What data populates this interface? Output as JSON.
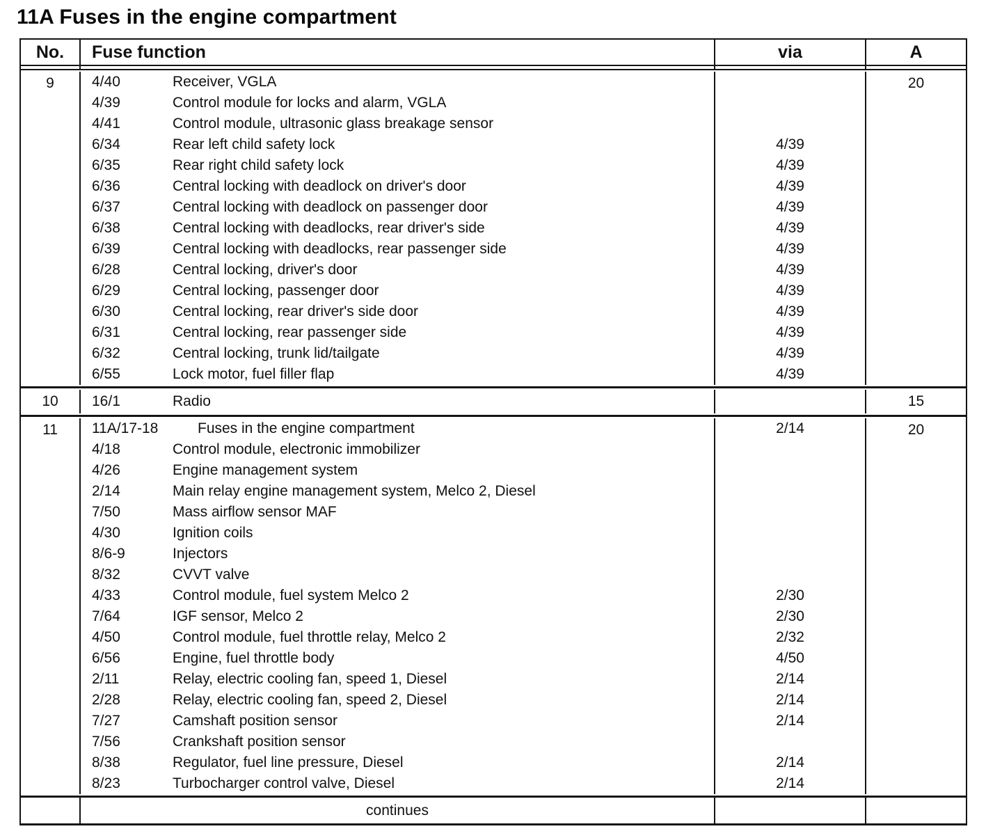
{
  "page_title": "11A Fuses in the engine compartment",
  "table": {
    "headers": {
      "no": "No.",
      "function": "Fuse function",
      "via": "via",
      "amps": "A"
    },
    "sections": [
      {
        "no": "9",
        "amps": "20",
        "rows": [
          {
            "id": "4/40",
            "desc": "Receiver, VGLA",
            "via": ""
          },
          {
            "id": "4/39",
            "desc": "Control module for locks and alarm, VGLA",
            "via": ""
          },
          {
            "id": "4/41",
            "desc": "Control module, ultrasonic glass breakage sensor",
            "via": ""
          },
          {
            "id": "6/34",
            "desc": "Rear left child safety lock",
            "via": "4/39"
          },
          {
            "id": "6/35",
            "desc": "Rear right child safety lock",
            "via": "4/39"
          },
          {
            "id": "6/36",
            "desc": "Central locking with deadlock on driver's door",
            "via": "4/39"
          },
          {
            "id": "6/37",
            "desc": "Central locking with deadlock on passenger door",
            "via": "4/39"
          },
          {
            "id": "6/38",
            "desc": "Central locking with deadlocks, rear driver's side",
            "via": "4/39"
          },
          {
            "id": "6/39",
            "desc": "Central locking with deadlocks, rear passenger side",
            "via": "4/39"
          },
          {
            "id": "6/28",
            "desc": "Central locking, driver's door",
            "via": "4/39"
          },
          {
            "id": "6/29",
            "desc": "Central locking, passenger door",
            "via": "4/39"
          },
          {
            "id": "6/30",
            "desc": "Central locking, rear driver's side door",
            "via": "4/39"
          },
          {
            "id": "6/31",
            "desc": "Central locking, rear passenger side",
            "via": "4/39"
          },
          {
            "id": "6/32",
            "desc": "Central locking, trunk lid/tailgate",
            "via": "4/39"
          },
          {
            "id": "6/55",
            "desc": "Lock motor, fuel filler flap",
            "via": "4/39"
          }
        ]
      },
      {
        "no": "10",
        "amps": "15",
        "rows": [
          {
            "id": "16/1",
            "desc": "Radio",
            "via": ""
          }
        ]
      },
      {
        "no": "11",
        "amps": "20",
        "rows": [
          {
            "id": "11A/17-18",
            "desc": "Fuses in the engine compartment",
            "via": "2/14"
          },
          {
            "id": "4/18",
            "desc": "Control module, electronic immobilizer",
            "via": ""
          },
          {
            "id": "4/26",
            "desc": "Engine management system",
            "via": ""
          },
          {
            "id": "2/14",
            "desc": "Main relay engine management system, Melco 2, Diesel",
            "via": ""
          },
          {
            "id": "7/50",
            "desc": "Mass airflow sensor MAF",
            "via": ""
          },
          {
            "id": "4/30",
            "desc": "Ignition coils",
            "via": ""
          },
          {
            "id": "8/6-9",
            "desc": "Injectors",
            "via": ""
          },
          {
            "id": "8/32",
            "desc": "CVVT valve",
            "via": ""
          },
          {
            "id": "4/33",
            "desc": "Control module, fuel system Melco 2",
            "via": "2/30"
          },
          {
            "id": "7/64",
            "desc": "IGF sensor, Melco 2",
            "via": "2/30"
          },
          {
            "id": "4/50",
            "desc": "Control module, fuel throttle relay, Melco 2",
            "via": "2/32"
          },
          {
            "id": "6/56",
            "desc": "Engine, fuel throttle body",
            "via": "4/50"
          },
          {
            "id": "2/11",
            "desc": "Relay, electric cooling fan, speed 1, Diesel",
            "via": "2/14"
          },
          {
            "id": "2/28",
            "desc": "Relay, electric cooling fan, speed 2, Diesel",
            "via": "2/14"
          },
          {
            "id": "7/27",
            "desc": "Camshaft position sensor",
            "via": "2/14"
          },
          {
            "id": "7/56",
            "desc": "Crankshaft position sensor",
            "via": ""
          },
          {
            "id": "8/38",
            "desc": "Regulator, fuel line pressure, Diesel",
            "via": "2/14"
          },
          {
            "id": "8/23",
            "desc": "Turbocharger control valve, Diesel",
            "via": "2/14"
          }
        ]
      }
    ],
    "footer": "continues"
  }
}
